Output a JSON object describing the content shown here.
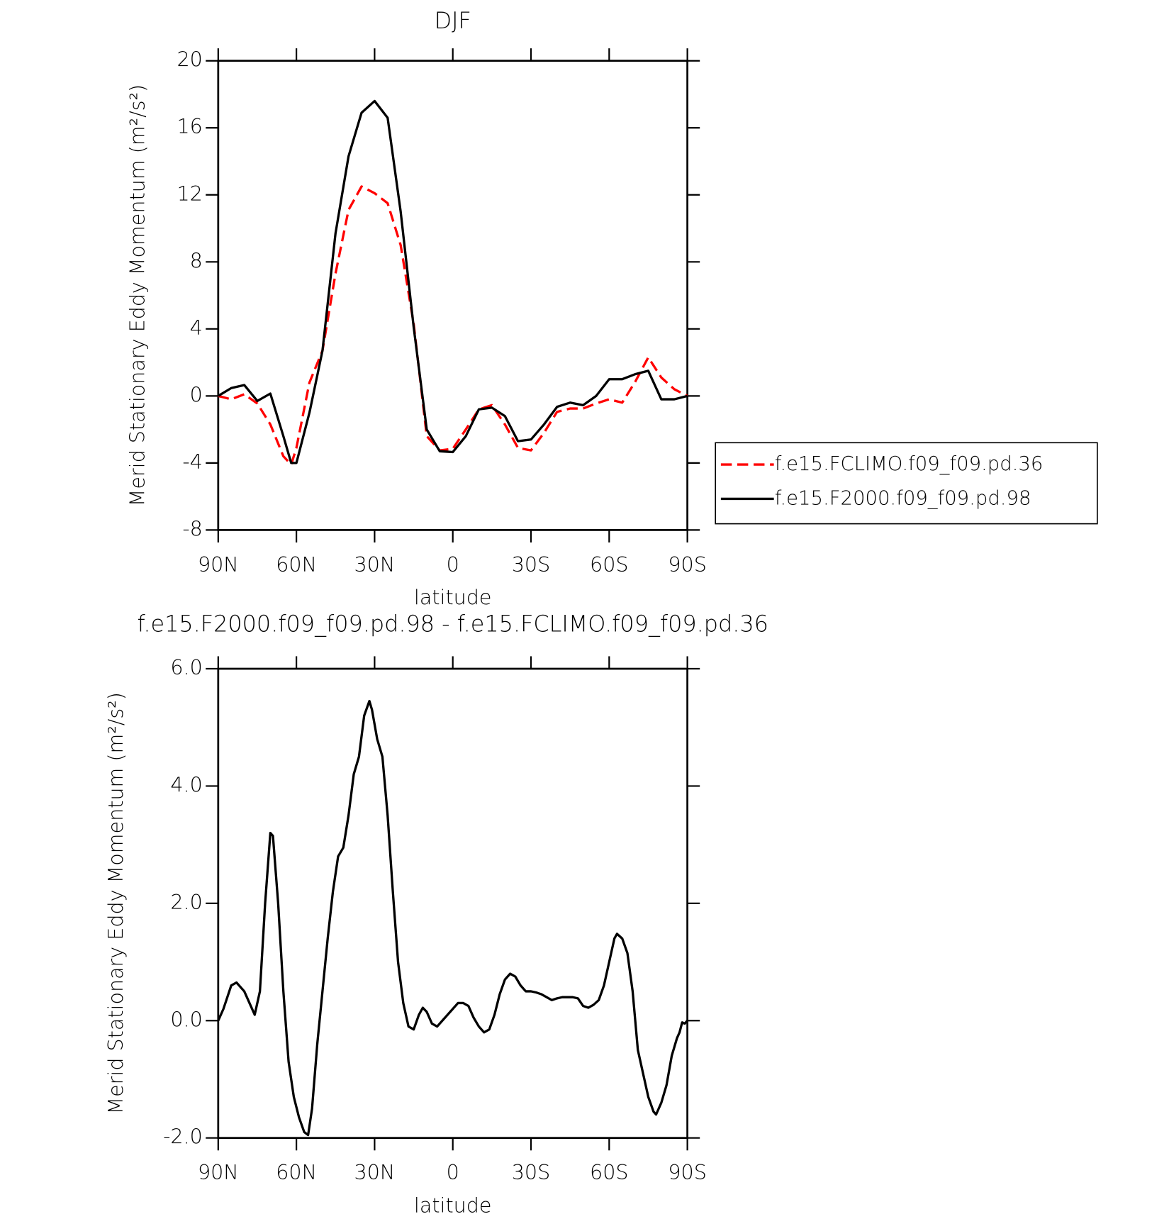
{
  "chart_data": [
    {
      "type": "line",
      "title": "DJF",
      "xlabel": "latitude",
      "ylabel": "Merid Stationary Eddy Momentum (m²/s²)",
      "x": [
        90,
        85,
        80,
        75,
        70,
        65,
        62,
        60,
        55,
        50,
        45,
        40,
        35,
        30,
        25,
        20,
        15,
        10,
        5,
        0,
        -5,
        -10,
        -15,
        -20,
        -25,
        -30,
        -35,
        -40,
        -45,
        -50,
        -55,
        -60,
        -65,
        -70,
        -75,
        -80,
        -85,
        -90
      ],
      "series": [
        {
          "name": "f.e15.FCLIMO.f09_f09.pd.36",
          "color": "#ff0000",
          "dash": true,
          "values": [
            0,
            -0.2,
            0.1,
            -0.45,
            -1.7,
            -3.6,
            -4.1,
            -3.1,
            0.8,
            2.7,
            7.3,
            11.1,
            12.5,
            12.1,
            11.5,
            9.0,
            4.3,
            -2.4,
            -3.25,
            -3.15,
            -2.0,
            -0.8,
            -0.55,
            -1.7,
            -3.1,
            -3.25,
            -2.2,
            -0.95,
            -0.75,
            -0.75,
            -0.45,
            -0.2,
            -0.4,
            0.85,
            2.3,
            1.1,
            0.4,
            0
          ]
        },
        {
          "name": "f.e15.F2000.f09_f09.pd.98",
          "color": "#000000",
          "dash": false,
          "values": [
            0,
            0.47,
            0.65,
            -0.3,
            0.14,
            -2.4,
            -4.0,
            -4.0,
            -1.0,
            2.7,
            9.7,
            14.3,
            16.9,
            17.6,
            16.6,
            11.0,
            4.1,
            -2.0,
            -3.3,
            -3.35,
            -2.4,
            -0.8,
            -0.7,
            -1.2,
            -2.7,
            -2.6,
            -1.7,
            -0.65,
            -0.4,
            -0.55,
            0,
            1.0,
            1.0,
            1.3,
            1.5,
            -0.2,
            -0.2,
            0
          ]
        }
      ],
      "xlim": [
        90,
        -90
      ],
      "xticks": [
        {
          "value": 90,
          "label": "90N"
        },
        {
          "value": 60,
          "label": "60N"
        },
        {
          "value": 30,
          "label": "30N"
        },
        0,
        {
          "value": -30,
          "label": "30S"
        },
        {
          "value": -60,
          "label": "60S"
        },
        {
          "value": -90,
          "label": "90S"
        }
      ],
      "ylim": [
        -8,
        20
      ],
      "yticks": [
        -8,
        -4,
        0,
        4,
        8,
        12,
        16,
        20
      ],
      "legend": "right"
    },
    {
      "type": "line",
      "title": "f.e15.F2000.f09_f09.pd.98 - f.e15.FCLIMO.f09_f09.pd.36",
      "xlabel": "latitude",
      "ylabel": "Merid Stationary Eddy Momentum (m²/s²)",
      "x": [
        90,
        88,
        85,
        83,
        80,
        78,
        76,
        74,
        72,
        70,
        69,
        67,
        65,
        63,
        61,
        59,
        57,
        55.5,
        54,
        52,
        50,
        48,
        46,
        44,
        42,
        40,
        38,
        36,
        34,
        32,
        31,
        29,
        27,
        25,
        23,
        21,
        19,
        17,
        15,
        13,
        11.5,
        10,
        8,
        6,
        4,
        2,
        0,
        -2,
        -4,
        -6,
        -8,
        -10,
        -12,
        -14,
        -16,
        -18,
        -20,
        -22,
        -24,
        -26,
        -28,
        -30,
        -32,
        -34,
        -36,
        -38,
        -40,
        -42,
        -44,
        -46,
        -48,
        -50,
        -52,
        -54,
        -56,
        -58,
        -60,
        -62,
        -63,
        -65,
        -67,
        -69,
        -71,
        -73,
        -75,
        -77,
        -78,
        -80,
        -82,
        -84,
        -86,
        -87,
        -88,
        -89,
        -90
      ],
      "color": "#000000",
      "values": [
        0,
        0.2,
        0.6,
        0.65,
        0.5,
        0.3,
        0.1,
        0.5,
        2.0,
        3.2,
        3.15,
        2.0,
        0.5,
        -0.7,
        -1.3,
        -1.65,
        -1.9,
        -1.95,
        -1.5,
        -0.4,
        0.5,
        1.4,
        2.2,
        2.8,
        2.95,
        3.5,
        4.2,
        4.5,
        5.2,
        5.45,
        5.3,
        4.8,
        4.5,
        3.5,
        2.2,
        1.0,
        0.3,
        -0.1,
        -0.15,
        0.1,
        0.22,
        0.15,
        -0.05,
        -0.1,
        0,
        0.1,
        0.2,
        0.3,
        0.3,
        0.25,
        0.05,
        -0.1,
        -0.2,
        -0.15,
        0.1,
        0.45,
        0.7,
        0.8,
        0.75,
        0.6,
        0.5,
        0.5,
        0.48,
        0.45,
        0.4,
        0.35,
        0.38,
        0.4,
        0.4,
        0.4,
        0.38,
        0.25,
        0.22,
        0.27,
        0.35,
        0.6,
        1.0,
        1.4,
        1.48,
        1.4,
        1.15,
        0.5,
        -0.5,
        -0.9,
        -1.3,
        -1.55,
        -1.6,
        -1.4,
        -1.1,
        -0.6,
        -0.3,
        -0.2,
        -0.03,
        -0.05,
        0
      ],
      "xlim": [
        90,
        -90
      ],
      "xticks": [
        {
          "value": 90,
          "label": "90N"
        },
        {
          "value": 60,
          "label": "60N"
        },
        {
          "value": 30,
          "label": "30N"
        },
        0,
        {
          "value": -30,
          "label": "30S"
        },
        {
          "value": -60,
          "label": "60S"
        },
        {
          "value": -90,
          "label": "90S"
        }
      ],
      "ylim": [
        -2,
        6
      ],
      "yticks": [
        {
          "value": -2,
          "label": "-2.0"
        },
        {
          "value": 0,
          "label": "0.0"
        },
        {
          "value": 2,
          "label": "2.0"
        },
        {
          "value": 4,
          "label": "4.0"
        },
        {
          "value": 6,
          "label": "6.0"
        }
      ]
    }
  ]
}
